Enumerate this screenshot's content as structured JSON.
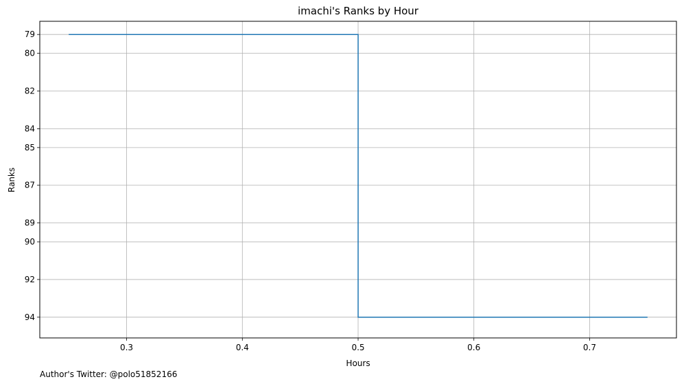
{
  "chart_data": {
    "type": "line",
    "drawstyle": "steps-post",
    "title": "imachi's Ranks by Hour",
    "xlabel": "Hours",
    "ylabel": "Ranks",
    "x": [
      0.25,
      0.5,
      0.75
    ],
    "series": [
      {
        "values": [
          79,
          94,
          94
        ],
        "color": "#1f77b4"
      }
    ],
    "xlim": [
      0.225,
      0.775
    ],
    "ylim": [
      95.1,
      78.3
    ],
    "y_inverted": true,
    "xticks": [
      0.3,
      0.4,
      0.5,
      0.6,
      0.7
    ],
    "xtick_labels": [
      "0.3",
      "0.4",
      "0.5",
      "0.6",
      "0.7"
    ],
    "yticks": [
      79,
      80,
      82,
      84,
      85,
      87,
      89,
      90,
      92,
      94
    ],
    "ytick_labels": [
      "79",
      "80",
      "82",
      "84",
      "85",
      "87",
      "89",
      "90",
      "92",
      "94"
    ],
    "grid": true
  },
  "footer": {
    "author": "Author's Twitter: @polo51852166"
  }
}
